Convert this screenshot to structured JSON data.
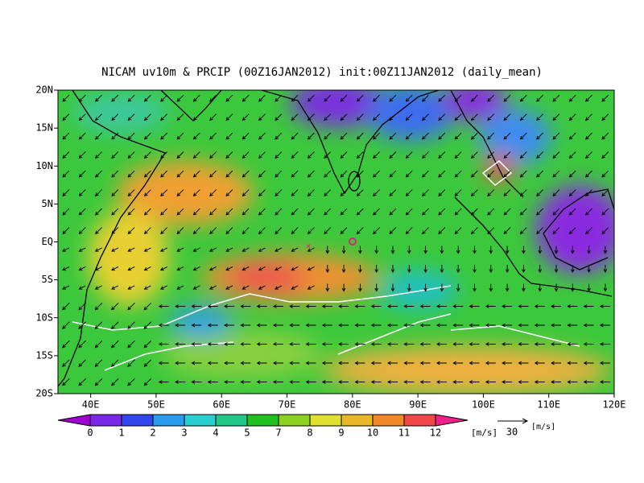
{
  "title": "NICAM uv10m & PRCIP (00Z16JAN2012) init:00Z11JAN2012 (daily_mean)",
  "lat_labels": [
    "20N",
    "15N",
    "10N",
    "5N",
    "EQ",
    "5S",
    "10S",
    "15S",
    "20S"
  ],
  "lon_labels": [
    "40E",
    "50E",
    "60E",
    "70E",
    "80E",
    "90E",
    "100E",
    "110E",
    "120E"
  ],
  "colorbar": {
    "labels": [
      "0",
      "1",
      "2",
      "3",
      "4",
      "5",
      "7",
      "8",
      "9",
      "10",
      "11",
      "12"
    ],
    "unit": "[m/s]"
  },
  "reference_vector": {
    "value": "30",
    "unit": "[m/s]"
  }
}
